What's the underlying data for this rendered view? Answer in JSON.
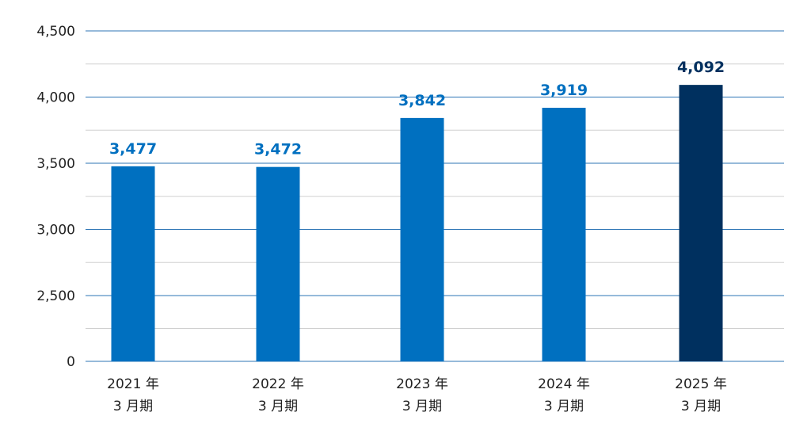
{
  "chart_data": {
    "type": "bar",
    "categories": [
      [
        "2021 年",
        "3 月期"
      ],
      [
        "2022 年",
        "3 月期"
      ],
      [
        "2023 年",
        "3 月期"
      ],
      [
        "2024 年",
        "3 月期"
      ],
      [
        "2025 年",
        "3 月期"
      ]
    ],
    "values": [
      3477,
      3472,
      3842,
      3919,
      4092
    ],
    "value_labels": [
      "3,477",
      "3,472",
      "3,842",
      "3,919",
      "4,092"
    ],
    "y_ticks": [
      {
        "value": 0,
        "label": "0"
      },
      {
        "value": 2500,
        "label": "2,500"
      },
      {
        "value": 3000,
        "label": "3,000"
      },
      {
        "value": 3500,
        "label": "3,500"
      },
      {
        "value": 4000,
        "label": "4,000"
      },
      {
        "value": 4500,
        "label": "4,500"
      }
    ],
    "axis_break": "between 0 and 2,500",
    "grid": true,
    "title": "",
    "xlabel": "",
    "ylabel": "",
    "colors": {
      "bar": "#0070c0",
      "highlight_bar": "#00305f",
      "bar_label": "#0070c0",
      "highlight_label": "#00305f",
      "grid_major": "#2e75b6",
      "grid_minor": "#d0d0d0"
    },
    "highlight_index": 4
  }
}
